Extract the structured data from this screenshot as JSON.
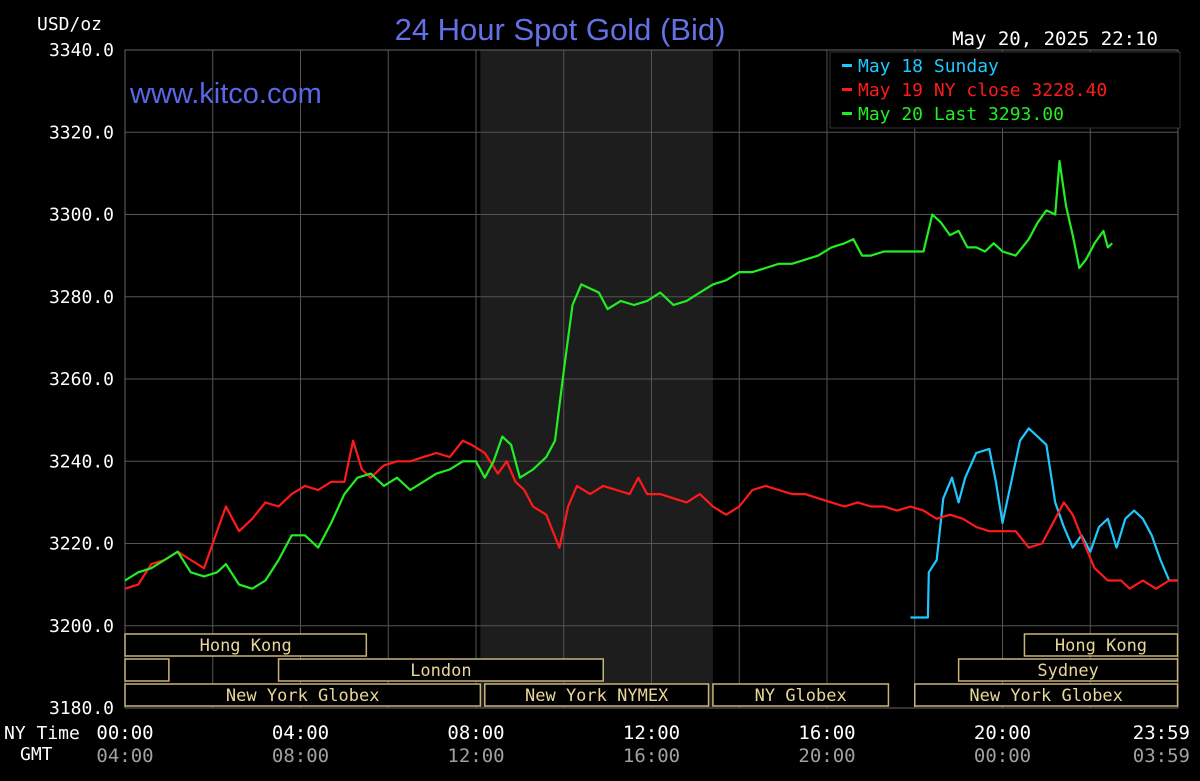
{
  "chart_data": {
    "type": "line",
    "title": "24 Hour Spot Gold (Bid)",
    "watermark": "www.kitco.com",
    "timestamp": "May 20, 2025 22:10",
    "y_unit_label": "USD/oz",
    "ylim": [
      3180,
      3340
    ],
    "xlim": [
      0,
      24
    ],
    "grid": true,
    "legend_position": "top-right",
    "y_ticks": [
      "3340.0",
      "3320.0",
      "3300.0",
      "3280.0",
      "3260.0",
      "3240.0",
      "3220.0",
      "3200.0",
      "3180.0"
    ],
    "x_row_label_ny": "NY Time",
    "x_row_label_gmt": "GMT",
    "x_ticks_ny": [
      "00:00",
      "04:00",
      "08:00",
      "12:00",
      "16:00",
      "20:00",
      "23:59"
    ],
    "x_ticks_gmt": [
      "04:00",
      "08:00",
      "12:00",
      "16:00",
      "20:00",
      "00:00",
      "03:59"
    ],
    "legend": [
      {
        "label": "May 18 Sunday",
        "color": "#1ec8ff"
      },
      {
        "label": "May 19 NY close 3228.40",
        "color": "#ff1a1a"
      },
      {
        "label": "May 20 Last 3293.00",
        "color": "#22ee22"
      }
    ],
    "shaded_period": [
      8.1,
      13.4
    ],
    "sessions": [
      {
        "label": "Hong Kong",
        "row": 0,
        "start": 0,
        "end": 5.5
      },
      {
        "label": "",
        "row": 1,
        "start": 0,
        "end": 1.0
      },
      {
        "label": "London",
        "row": 1,
        "start": 3.5,
        "end": 10.9
      },
      {
        "label": "New York Globex",
        "row": 2,
        "start": 0,
        "end": 8.1
      },
      {
        "label": "New York NYMEX",
        "row": 2,
        "start": 8.2,
        "end": 13.3
      },
      {
        "label": "NY Globex",
        "row": 2,
        "start": 13.4,
        "end": 17.4
      },
      {
        "label": "Hong Kong",
        "row": 0,
        "start": 20.5,
        "end": 23.99
      },
      {
        "label": "Sydney",
        "row": 1,
        "start": 19.0,
        "end": 23.99
      },
      {
        "label": "New York Globex",
        "row": 2,
        "start": 18.0,
        "end": 23.99
      }
    ],
    "series": [
      {
        "name": "May 18 Sunday",
        "color": "#1ec8ff",
        "points": [
          [
            17.9,
            3202
          ],
          [
            18.3,
            3202
          ],
          [
            18.32,
            3213
          ],
          [
            18.5,
            3216
          ],
          [
            18.65,
            3231
          ],
          [
            18.85,
            3236
          ],
          [
            19.0,
            3230
          ],
          [
            19.15,
            3236
          ],
          [
            19.4,
            3242
          ],
          [
            19.7,
            3243
          ],
          [
            19.85,
            3235
          ],
          [
            20.0,
            3225
          ],
          [
            20.2,
            3235
          ],
          [
            20.4,
            3245
          ],
          [
            20.6,
            3248
          ],
          [
            20.8,
            3246
          ],
          [
            21.0,
            3244
          ],
          [
            21.2,
            3230
          ],
          [
            21.4,
            3224
          ],
          [
            21.6,
            3219
          ],
          [
            21.8,
            3222
          ],
          [
            22.0,
            3218
          ],
          [
            22.2,
            3224
          ],
          [
            22.4,
            3226
          ],
          [
            22.6,
            3219
          ],
          [
            22.8,
            3226
          ],
          [
            23.0,
            3228
          ],
          [
            23.2,
            3226
          ],
          [
            23.4,
            3222
          ],
          [
            23.6,
            3216
          ],
          [
            23.8,
            3211
          ],
          [
            23.99,
            3211
          ]
        ]
      },
      {
        "name": "May 19 NY close 3228.40",
        "color": "#ff1a1a",
        "points": [
          [
            0.0,
            3209
          ],
          [
            0.3,
            3210
          ],
          [
            0.6,
            3215
          ],
          [
            0.9,
            3216
          ],
          [
            1.2,
            3218
          ],
          [
            1.5,
            3216
          ],
          [
            1.8,
            3214
          ],
          [
            2.1,
            3223
          ],
          [
            2.3,
            3229
          ],
          [
            2.6,
            3223
          ],
          [
            2.9,
            3226
          ],
          [
            3.2,
            3230
          ],
          [
            3.5,
            3229
          ],
          [
            3.8,
            3232
          ],
          [
            4.1,
            3234
          ],
          [
            4.4,
            3233
          ],
          [
            4.7,
            3235
          ],
          [
            5.0,
            3235
          ],
          [
            5.2,
            3245
          ],
          [
            5.4,
            3238
          ],
          [
            5.6,
            3236
          ],
          [
            5.9,
            3239
          ],
          [
            6.2,
            3240
          ],
          [
            6.5,
            3240
          ],
          [
            6.8,
            3241
          ],
          [
            7.1,
            3242
          ],
          [
            7.4,
            3241
          ],
          [
            7.7,
            3245
          ],
          [
            7.9,
            3244
          ],
          [
            8.2,
            3242
          ],
          [
            8.5,
            3237
          ],
          [
            8.7,
            3240
          ],
          [
            8.9,
            3235
          ],
          [
            9.1,
            3233
          ],
          [
            9.3,
            3229
          ],
          [
            9.6,
            3227
          ],
          [
            9.9,
            3219
          ],
          [
            10.1,
            3229
          ],
          [
            10.3,
            3234
          ],
          [
            10.6,
            3232
          ],
          [
            10.9,
            3234
          ],
          [
            11.2,
            3233
          ],
          [
            11.5,
            3232
          ],
          [
            11.7,
            3236
          ],
          [
            11.9,
            3232
          ],
          [
            12.2,
            3232
          ],
          [
            12.5,
            3231
          ],
          [
            12.8,
            3230
          ],
          [
            13.1,
            3232
          ],
          [
            13.4,
            3229
          ],
          [
            13.7,
            3227
          ],
          [
            14.0,
            3229
          ],
          [
            14.3,
            3233
          ],
          [
            14.6,
            3234
          ],
          [
            14.9,
            3233
          ],
          [
            15.2,
            3232
          ],
          [
            15.5,
            3232
          ],
          [
            15.8,
            3231
          ],
          [
            16.1,
            3230
          ],
          [
            16.4,
            3229
          ],
          [
            16.7,
            3230
          ],
          [
            17.0,
            3229
          ],
          [
            17.3,
            3229
          ],
          [
            17.6,
            3228
          ],
          [
            17.9,
            3229
          ],
          [
            18.2,
            3228
          ],
          [
            18.5,
            3226
          ],
          [
            18.8,
            3227
          ],
          [
            19.1,
            3226
          ],
          [
            19.4,
            3224
          ],
          [
            19.7,
            3223
          ],
          [
            20.0,
            3223
          ],
          [
            20.3,
            3223
          ],
          [
            20.6,
            3219
          ],
          [
            20.9,
            3220
          ],
          [
            21.2,
            3226
          ],
          [
            21.4,
            3230
          ],
          [
            21.6,
            3227
          ],
          [
            21.9,
            3219
          ],
          [
            22.1,
            3214
          ],
          [
            22.4,
            3211
          ],
          [
            22.7,
            3211
          ],
          [
            22.9,
            3209
          ],
          [
            23.2,
            3211
          ],
          [
            23.5,
            3209
          ],
          [
            23.8,
            3211
          ],
          [
            23.99,
            3211
          ]
        ]
      },
      {
        "name": "May 20 Last 3293.00",
        "color": "#22ee22",
        "points": [
          [
            0.0,
            3211
          ],
          [
            0.3,
            3213
          ],
          [
            0.6,
            3214
          ],
          [
            0.9,
            3216
          ],
          [
            1.2,
            3218
          ],
          [
            1.5,
            3213
          ],
          [
            1.8,
            3212
          ],
          [
            2.1,
            3213
          ],
          [
            2.3,
            3215
          ],
          [
            2.6,
            3210
          ],
          [
            2.9,
            3209
          ],
          [
            3.2,
            3211
          ],
          [
            3.5,
            3216
          ],
          [
            3.8,
            3222
          ],
          [
            4.1,
            3222
          ],
          [
            4.4,
            3219
          ],
          [
            4.7,
            3225
          ],
          [
            5.0,
            3232
          ],
          [
            5.3,
            3236
          ],
          [
            5.6,
            3237
          ],
          [
            5.9,
            3234
          ],
          [
            6.2,
            3236
          ],
          [
            6.5,
            3233
          ],
          [
            6.8,
            3235
          ],
          [
            7.1,
            3237
          ],
          [
            7.4,
            3238
          ],
          [
            7.7,
            3240
          ],
          [
            8.0,
            3240
          ],
          [
            8.2,
            3236
          ],
          [
            8.4,
            3240
          ],
          [
            8.6,
            3246
          ],
          [
            8.8,
            3244
          ],
          [
            9.0,
            3236
          ],
          [
            9.3,
            3238
          ],
          [
            9.6,
            3241
          ],
          [
            9.8,
            3245
          ],
          [
            10.0,
            3262
          ],
          [
            10.2,
            3278
          ],
          [
            10.4,
            3283
          ],
          [
            10.6,
            3282
          ],
          [
            10.8,
            3281
          ],
          [
            11.0,
            3277
          ],
          [
            11.3,
            3279
          ],
          [
            11.6,
            3278
          ],
          [
            11.9,
            3279
          ],
          [
            12.2,
            3281
          ],
          [
            12.5,
            3278
          ],
          [
            12.8,
            3279
          ],
          [
            13.1,
            3281
          ],
          [
            13.4,
            3283
          ],
          [
            13.7,
            3284
          ],
          [
            14.0,
            3286
          ],
          [
            14.3,
            3286
          ],
          [
            14.6,
            3287
          ],
          [
            14.9,
            3288
          ],
          [
            15.2,
            3288
          ],
          [
            15.5,
            3289
          ],
          [
            15.8,
            3290
          ],
          [
            16.1,
            3292
          ],
          [
            16.4,
            3293
          ],
          [
            16.6,
            3294
          ],
          [
            16.8,
            3290
          ],
          [
            17.0,
            3290
          ],
          [
            17.3,
            3291
          ],
          [
            17.6,
            3291
          ],
          [
            17.9,
            3291
          ],
          [
            18.2,
            3291
          ],
          [
            18.4,
            3300
          ],
          [
            18.6,
            3298
          ],
          [
            18.8,
            3295
          ],
          [
            19.0,
            3296
          ],
          [
            19.2,
            3292
          ],
          [
            19.4,
            3292
          ],
          [
            19.6,
            3291
          ],
          [
            19.8,
            3293
          ],
          [
            20.0,
            3291
          ],
          [
            20.3,
            3290
          ],
          [
            20.6,
            3294
          ],
          [
            20.8,
            3298
          ],
          [
            21.0,
            3301
          ],
          [
            21.2,
            3300
          ],
          [
            21.3,
            3313
          ],
          [
            21.45,
            3302
          ],
          [
            21.6,
            3295
          ],
          [
            21.75,
            3287
          ],
          [
            21.9,
            3289
          ],
          [
            22.1,
            3293
          ],
          [
            22.3,
            3296
          ],
          [
            22.4,
            3292
          ],
          [
            22.5,
            3293
          ]
        ]
      }
    ]
  }
}
